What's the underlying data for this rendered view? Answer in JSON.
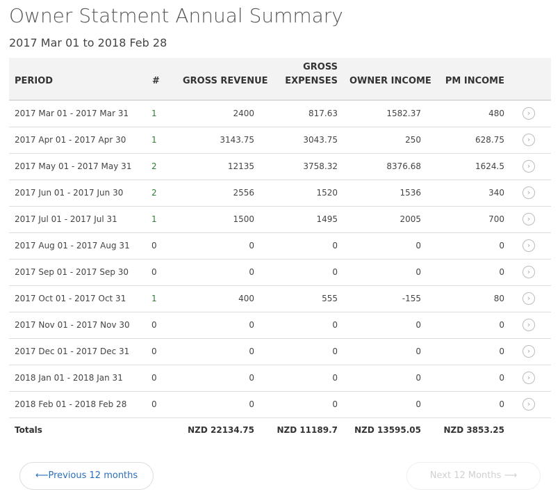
{
  "page": {
    "title": "Owner Statment Annual Summary",
    "subtitle": "2017 Mar 01 to 2018 Feb 28"
  },
  "table": {
    "headers": {
      "period": "PERIOD",
      "count": "#",
      "gross_revenue": "GROSS REVENUE",
      "gross_expenses_line1": "GROSS",
      "gross_expenses_line2": "EXPENSES",
      "owner_income": "OWNER INCOME",
      "pm_income": "PM INCOME"
    },
    "rows": [
      {
        "period": "2017 Mar 01 - 2017 Mar 31",
        "count": "1",
        "gross_revenue": "2400",
        "gross_expenses": "817.63",
        "owner_income": "1582.37",
        "pm_income": "480"
      },
      {
        "period": "2017 Apr 01 - 2017 Apr 30",
        "count": "1",
        "gross_revenue": "3143.75",
        "gross_expenses": "3043.75",
        "owner_income": "250",
        "pm_income": "628.75"
      },
      {
        "period": "2017 May 01 - 2017 May 31",
        "count": "2",
        "gross_revenue": "12135",
        "gross_expenses": "3758.32",
        "owner_income": "8376.68",
        "pm_income": "1624.5"
      },
      {
        "period": "2017 Jun 01 - 2017 Jun 30",
        "count": "2",
        "gross_revenue": "2556",
        "gross_expenses": "1520",
        "owner_income": "1536",
        "pm_income": "340"
      },
      {
        "period": "2017 Jul 01 - 2017 Jul 31",
        "count": "1",
        "gross_revenue": "1500",
        "gross_expenses": "1495",
        "owner_income": "2005",
        "pm_income": "700"
      },
      {
        "period": "2017 Aug 01 - 2017 Aug 31",
        "count": "0",
        "gross_revenue": "0",
        "gross_expenses": "0",
        "owner_income": "0",
        "pm_income": "0"
      },
      {
        "period": "2017 Sep 01 - 2017 Sep 30",
        "count": "0",
        "gross_revenue": "0",
        "gross_expenses": "0",
        "owner_income": "0",
        "pm_income": "0"
      },
      {
        "period": "2017 Oct 01 - 2017 Oct 31",
        "count": "1",
        "gross_revenue": "400",
        "gross_expenses": "555",
        "owner_income": "-155",
        "pm_income": "80"
      },
      {
        "period": "2017 Nov 01 - 2017 Nov 30",
        "count": "0",
        "gross_revenue": "0",
        "gross_expenses": "0",
        "owner_income": "0",
        "pm_income": "0"
      },
      {
        "period": "2017 Dec 01 - 2017 Dec 31",
        "count": "0",
        "gross_revenue": "0",
        "gross_expenses": "0",
        "owner_income": "0",
        "pm_income": "0"
      },
      {
        "period": "2018 Jan 01 - 2018 Jan 31",
        "count": "0",
        "gross_revenue": "0",
        "gross_expenses": "0",
        "owner_income": "0",
        "pm_income": "0"
      },
      {
        "period": "2018 Feb 01 - 2018 Feb 28",
        "count": "0",
        "gross_revenue": "0",
        "gross_expenses": "0",
        "owner_income": "0",
        "pm_income": "0"
      }
    ],
    "row_action_icon": "chevron-right-circle-icon",
    "totals": {
      "label": "Totals",
      "gross_revenue": "NZD 22134.75",
      "gross_expenses": "NZD 11189.7",
      "owner_income": "NZD 13595.05",
      "pm_income": "NZD 3853.25"
    }
  },
  "pager": {
    "previous_label": "Previous 12 months",
    "next_label": "Next 12 Months",
    "previous_icon": "arrow-left-icon",
    "next_icon": "arrow-right-icon"
  },
  "colors": {
    "link_blue": "#2a6ebb",
    "count_green": "#2e7d32",
    "header_bg": "#f3f3f3",
    "disabled": "#d0d0d0"
  }
}
